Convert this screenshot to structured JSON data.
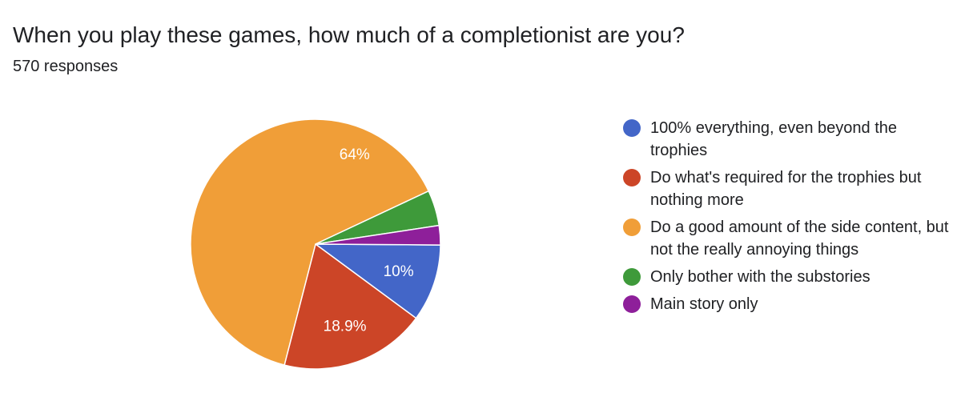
{
  "title": "When you play these games, how much of a completionist are you?",
  "subtitle": "570 responses",
  "chart_data": {
    "type": "pie",
    "title": "When you play these games, how much of a completionist are you?",
    "subtitle": "570 responses",
    "legend_position": "right",
    "slices": [
      {
        "label": "100% everything, even beyond the trophies",
        "value": 10.0,
        "display": "10%",
        "color": "#4366C8"
      },
      {
        "label": "Do what's required for the trophies but nothing more",
        "value": 18.9,
        "display": "18.9%",
        "color": "#CC4527"
      },
      {
        "label": "Do a good amount of the side content, but not the really annoying things",
        "value": 64.0,
        "display": "64%",
        "color": "#F09E38"
      },
      {
        "label": "Only bother with the substories",
        "value": 4.6,
        "display": "",
        "color": "#3E9A3A"
      },
      {
        "label": "Main story only",
        "value": 2.5,
        "display": "",
        "color": "#8E1F9A"
      }
    ]
  }
}
